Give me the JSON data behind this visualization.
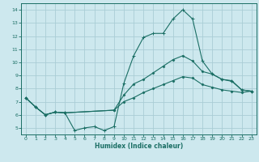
{
  "xlabel": "Humidex (Indice chaleur)",
  "bg_color": "#cde8ee",
  "grid_color": "#aacdd5",
  "line_color": "#1a6e64",
  "xlim": [
    -0.5,
    23.5
  ],
  "ylim": [
    4.5,
    14.5
  ],
  "xticks": [
    0,
    1,
    2,
    3,
    4,
    5,
    6,
    7,
    8,
    9,
    10,
    11,
    12,
    13,
    14,
    15,
    16,
    17,
    18,
    19,
    20,
    21,
    22,
    23
  ],
  "yticks": [
    5,
    6,
    7,
    8,
    9,
    10,
    11,
    12,
    13,
    14
  ],
  "line1_x": [
    0,
    1,
    2,
    3,
    4,
    5,
    6,
    7,
    8,
    9,
    10,
    11,
    12,
    13,
    14,
    15,
    16,
    17,
    18,
    19,
    20,
    21,
    22,
    23
  ],
  "line1_y": [
    7.3,
    6.6,
    6.0,
    6.2,
    6.15,
    4.8,
    5.0,
    5.1,
    4.8,
    5.1,
    8.4,
    10.5,
    11.9,
    12.2,
    12.2,
    13.3,
    14.0,
    13.3,
    10.1,
    9.1,
    8.7,
    8.6,
    7.9,
    7.8
  ],
  "line2_x": [
    0,
    1,
    2,
    3,
    4,
    9,
    10,
    11,
    12,
    13,
    14,
    15,
    16,
    17,
    18,
    19,
    20,
    21,
    22,
    23
  ],
  "line2_y": [
    7.3,
    6.6,
    6.0,
    6.2,
    6.15,
    6.35,
    7.5,
    8.35,
    8.7,
    9.2,
    9.7,
    10.2,
    10.5,
    10.1,
    9.3,
    9.1,
    8.7,
    8.55,
    7.9,
    7.8
  ],
  "line3_x": [
    0,
    1,
    2,
    3,
    4,
    9,
    10,
    11,
    12,
    13,
    14,
    15,
    16,
    17,
    18,
    19,
    20,
    21,
    22,
    23
  ],
  "line3_y": [
    7.3,
    6.6,
    6.0,
    6.2,
    6.15,
    6.35,
    7.0,
    7.3,
    7.7,
    8.0,
    8.3,
    8.6,
    8.9,
    8.8,
    8.3,
    8.1,
    7.9,
    7.8,
    7.7,
    7.8
  ]
}
